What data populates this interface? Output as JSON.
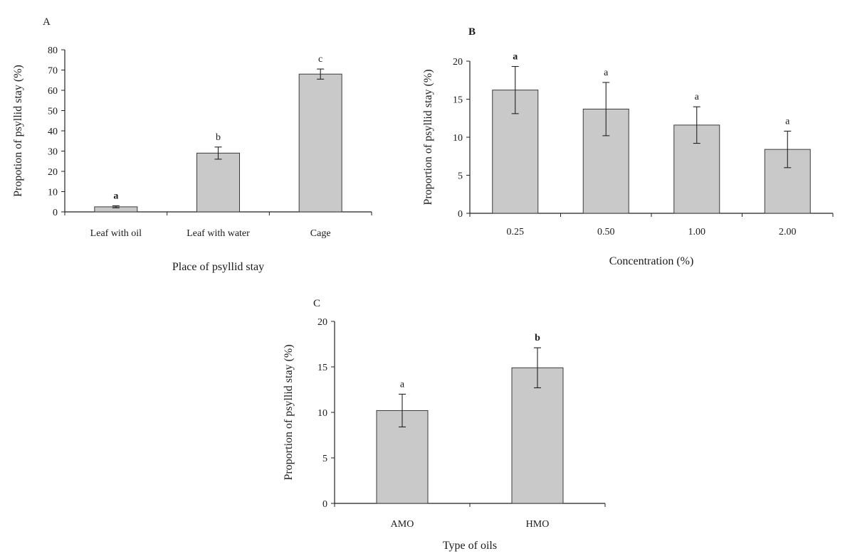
{
  "colors": {
    "bar_fill": "#c9c9c9",
    "bar_stroke": "#3a3a3a",
    "axis": "#222222",
    "error_bar": "#222222"
  },
  "chart_data": [
    {
      "id": "A",
      "panel_label": "A",
      "type": "bar",
      "xlabel": "Place of psyllid stay",
      "ylabel": "Propotion of psyllid stay (%)",
      "ylim": [
        0,
        80
      ],
      "yticks": [
        0,
        10,
        20,
        30,
        40,
        50,
        60,
        70,
        80
      ],
      "categories": [
        "Leaf with oil",
        "Leaf with water",
        "Cage"
      ],
      "values": [
        2.5,
        29,
        68
      ],
      "errors": [
        0.5,
        3,
        2.5
      ],
      "letters": [
        "a",
        "b",
        "c"
      ],
      "grid": false
    },
    {
      "id": "B",
      "panel_label": "B",
      "type": "bar",
      "xlabel": "Concentration (%)",
      "ylabel": "Proportion of psyllid stay (%)",
      "ylim": [
        0,
        20
      ],
      "yticks": [
        0,
        5,
        10,
        15,
        20
      ],
      "categories": [
        "0.25",
        "0.50",
        "1.00",
        "2.00"
      ],
      "values": [
        16.2,
        13.7,
        11.6,
        8.4
      ],
      "errors": [
        3.1,
        3.5,
        2.4,
        2.4
      ],
      "letters": [
        "a",
        "a",
        "a",
        "a"
      ],
      "grid": false
    },
    {
      "id": "C",
      "panel_label": "C",
      "type": "bar",
      "xlabel": "Type of oils",
      "ylabel": "Proportion of psyllid stay (%)",
      "ylim": [
        0,
        20
      ],
      "yticks": [
        0,
        5,
        10,
        15,
        20
      ],
      "categories": [
        "AMO",
        "HMO"
      ],
      "values": [
        10.2,
        14.9
      ],
      "errors": [
        1.8,
        2.2
      ],
      "letters": [
        "a",
        "b"
      ],
      "grid": false
    }
  ]
}
